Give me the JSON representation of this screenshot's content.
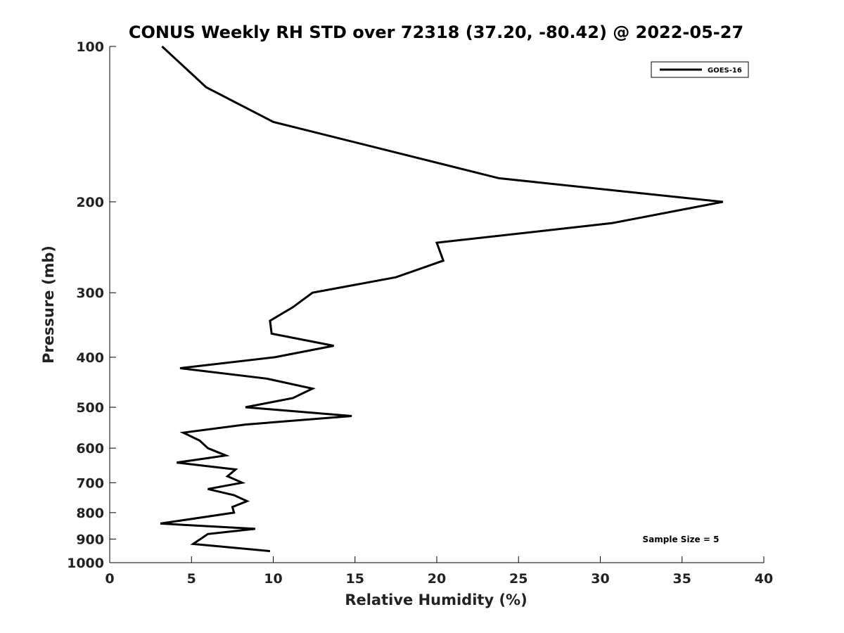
{
  "chart_data": {
    "type": "line",
    "title": "CONUS Weekly RH STD over 72318 (37.20, -80.42) @ 2022-05-27",
    "xlabel": "Relative Humidity (%)",
    "ylabel": "Pressure (mb)",
    "xlim": [
      0,
      40
    ],
    "ylim": [
      100,
      1000
    ],
    "y_scale": "log",
    "y_inverted": true,
    "xticks": [
      0,
      5,
      10,
      15,
      20,
      25,
      30,
      35,
      40
    ],
    "xtick_labels": [
      "0",
      "5",
      "10",
      "15",
      "20",
      "25",
      "30",
      "35",
      "40"
    ],
    "yticks": [
      100,
      200,
      300,
      400,
      500,
      600,
      700,
      800,
      900,
      1000
    ],
    "ytick_labels": [
      "100",
      "200",
      "300",
      "400",
      "500",
      "600",
      "700",
      "800",
      "900",
      "1000"
    ],
    "grid": false,
    "legend_position": "top-right",
    "annotation": "Sample Size = 5",
    "series": [
      {
        "name": "GOES-16",
        "color": "#000000",
        "points": [
          {
            "x": 3.2,
            "y": 100
          },
          {
            "x": 5.9,
            "y": 120
          },
          {
            "x": 10.0,
            "y": 140
          },
          {
            "x": 23.8,
            "y": 180
          },
          {
            "x": 37.5,
            "y": 200
          },
          {
            "x": 30.7,
            "y": 220
          },
          {
            "x": 20.0,
            "y": 240
          },
          {
            "x": 20.4,
            "y": 260
          },
          {
            "x": 17.5,
            "y": 280
          },
          {
            "x": 12.4,
            "y": 300
          },
          {
            "x": 11.2,
            "y": 320
          },
          {
            "x": 9.8,
            "y": 340
          },
          {
            "x": 9.9,
            "y": 360
          },
          {
            "x": 13.7,
            "y": 380
          },
          {
            "x": 10.1,
            "y": 400
          },
          {
            "x": 4.3,
            "y": 420
          },
          {
            "x": 9.6,
            "y": 440
          },
          {
            "x": 12.4,
            "y": 460
          },
          {
            "x": 11.2,
            "y": 480
          },
          {
            "x": 8.3,
            "y": 500
          },
          {
            "x": 14.8,
            "y": 520
          },
          {
            "x": 8.3,
            "y": 540
          },
          {
            "x": 4.5,
            "y": 560
          },
          {
            "x": 5.5,
            "y": 580
          },
          {
            "x": 6.0,
            "y": 600
          },
          {
            "x": 7.1,
            "y": 620
          },
          {
            "x": 4.1,
            "y": 640
          },
          {
            "x": 7.7,
            "y": 660
          },
          {
            "x": 7.2,
            "y": 680
          },
          {
            "x": 8.1,
            "y": 700
          },
          {
            "x": 6.0,
            "y": 720
          },
          {
            "x": 7.6,
            "y": 740
          },
          {
            "x": 8.4,
            "y": 760
          },
          {
            "x": 7.5,
            "y": 780
          },
          {
            "x": 7.6,
            "y": 800
          },
          {
            "x": 3.1,
            "y": 840
          },
          {
            "x": 8.9,
            "y": 860
          },
          {
            "x": 6.0,
            "y": 880
          },
          {
            "x": 5.1,
            "y": 920
          },
          {
            "x": 9.8,
            "y": 950
          }
        ]
      }
    ]
  }
}
